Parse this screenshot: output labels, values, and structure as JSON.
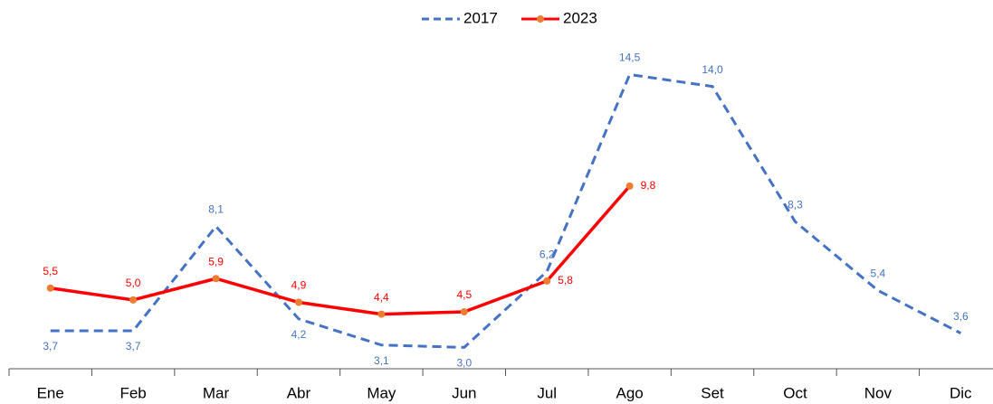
{
  "chart_data": {
    "type": "line",
    "categories": [
      "Ene",
      "Feb",
      "Mar",
      "Abr",
      "May",
      "Jun",
      "Jul",
      "Ago",
      "Set",
      "Oct",
      "Nov",
      "Dic"
    ],
    "series": [
      {
        "name": "2017",
        "color": "#4472c4",
        "dashed": true,
        "markers": false,
        "values": [
          3.7,
          3.7,
          8.1,
          4.2,
          3.1,
          3.0,
          6.2,
          14.5,
          14.0,
          8.3,
          5.4,
          3.6
        ],
        "value_labels": [
          "3,7",
          "3,7",
          "8,1",
          "4,2",
          "3,1",
          "3,0",
          "6,2",
          "14,5",
          "14,0",
          "8,3",
          "5,4",
          "3,6"
        ]
      },
      {
        "name": "2023",
        "color": "#ff0000",
        "dashed": false,
        "markers": true,
        "marker_color": "#ed7d31",
        "values": [
          5.5,
          5.0,
          5.9,
          4.9,
          4.4,
          4.5,
          5.8,
          9.8,
          null,
          null,
          null,
          null
        ],
        "value_labels": [
          "5,5",
          "5,0",
          "5,9",
          "4,9",
          "4,4",
          "4,5",
          "5,8",
          "9,8",
          null,
          null,
          null,
          null
        ]
      }
    ],
    "ylim": [
      2.1,
      16.5
    ],
    "legend": "top"
  }
}
